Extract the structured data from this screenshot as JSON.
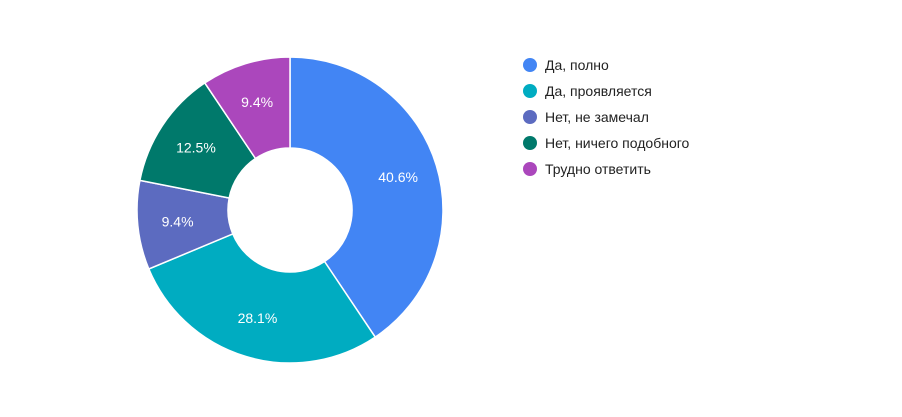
{
  "chart_data": {
    "type": "pie",
    "donut": true,
    "legend_position": "right",
    "slices": [
      {
        "label": "Да, полно",
        "value": 40.6,
        "display": "40.6%",
        "color": "#4285f4"
      },
      {
        "label": "Да, проявляется",
        "value": 28.1,
        "display": "28.1%",
        "color": "#00acc1"
      },
      {
        "label": "Нет, не замечал",
        "value": 9.4,
        "display": "9.4%",
        "color": "#5c6bc0"
      },
      {
        "label": "Нет, ничего подобного",
        "value": 12.5,
        "display": "12.5%",
        "color": "#00796b"
      },
      {
        "label": "Трудно ответить",
        "value": 9.4,
        "display": "9.4%",
        "color": "#ab47bc"
      }
    ]
  }
}
